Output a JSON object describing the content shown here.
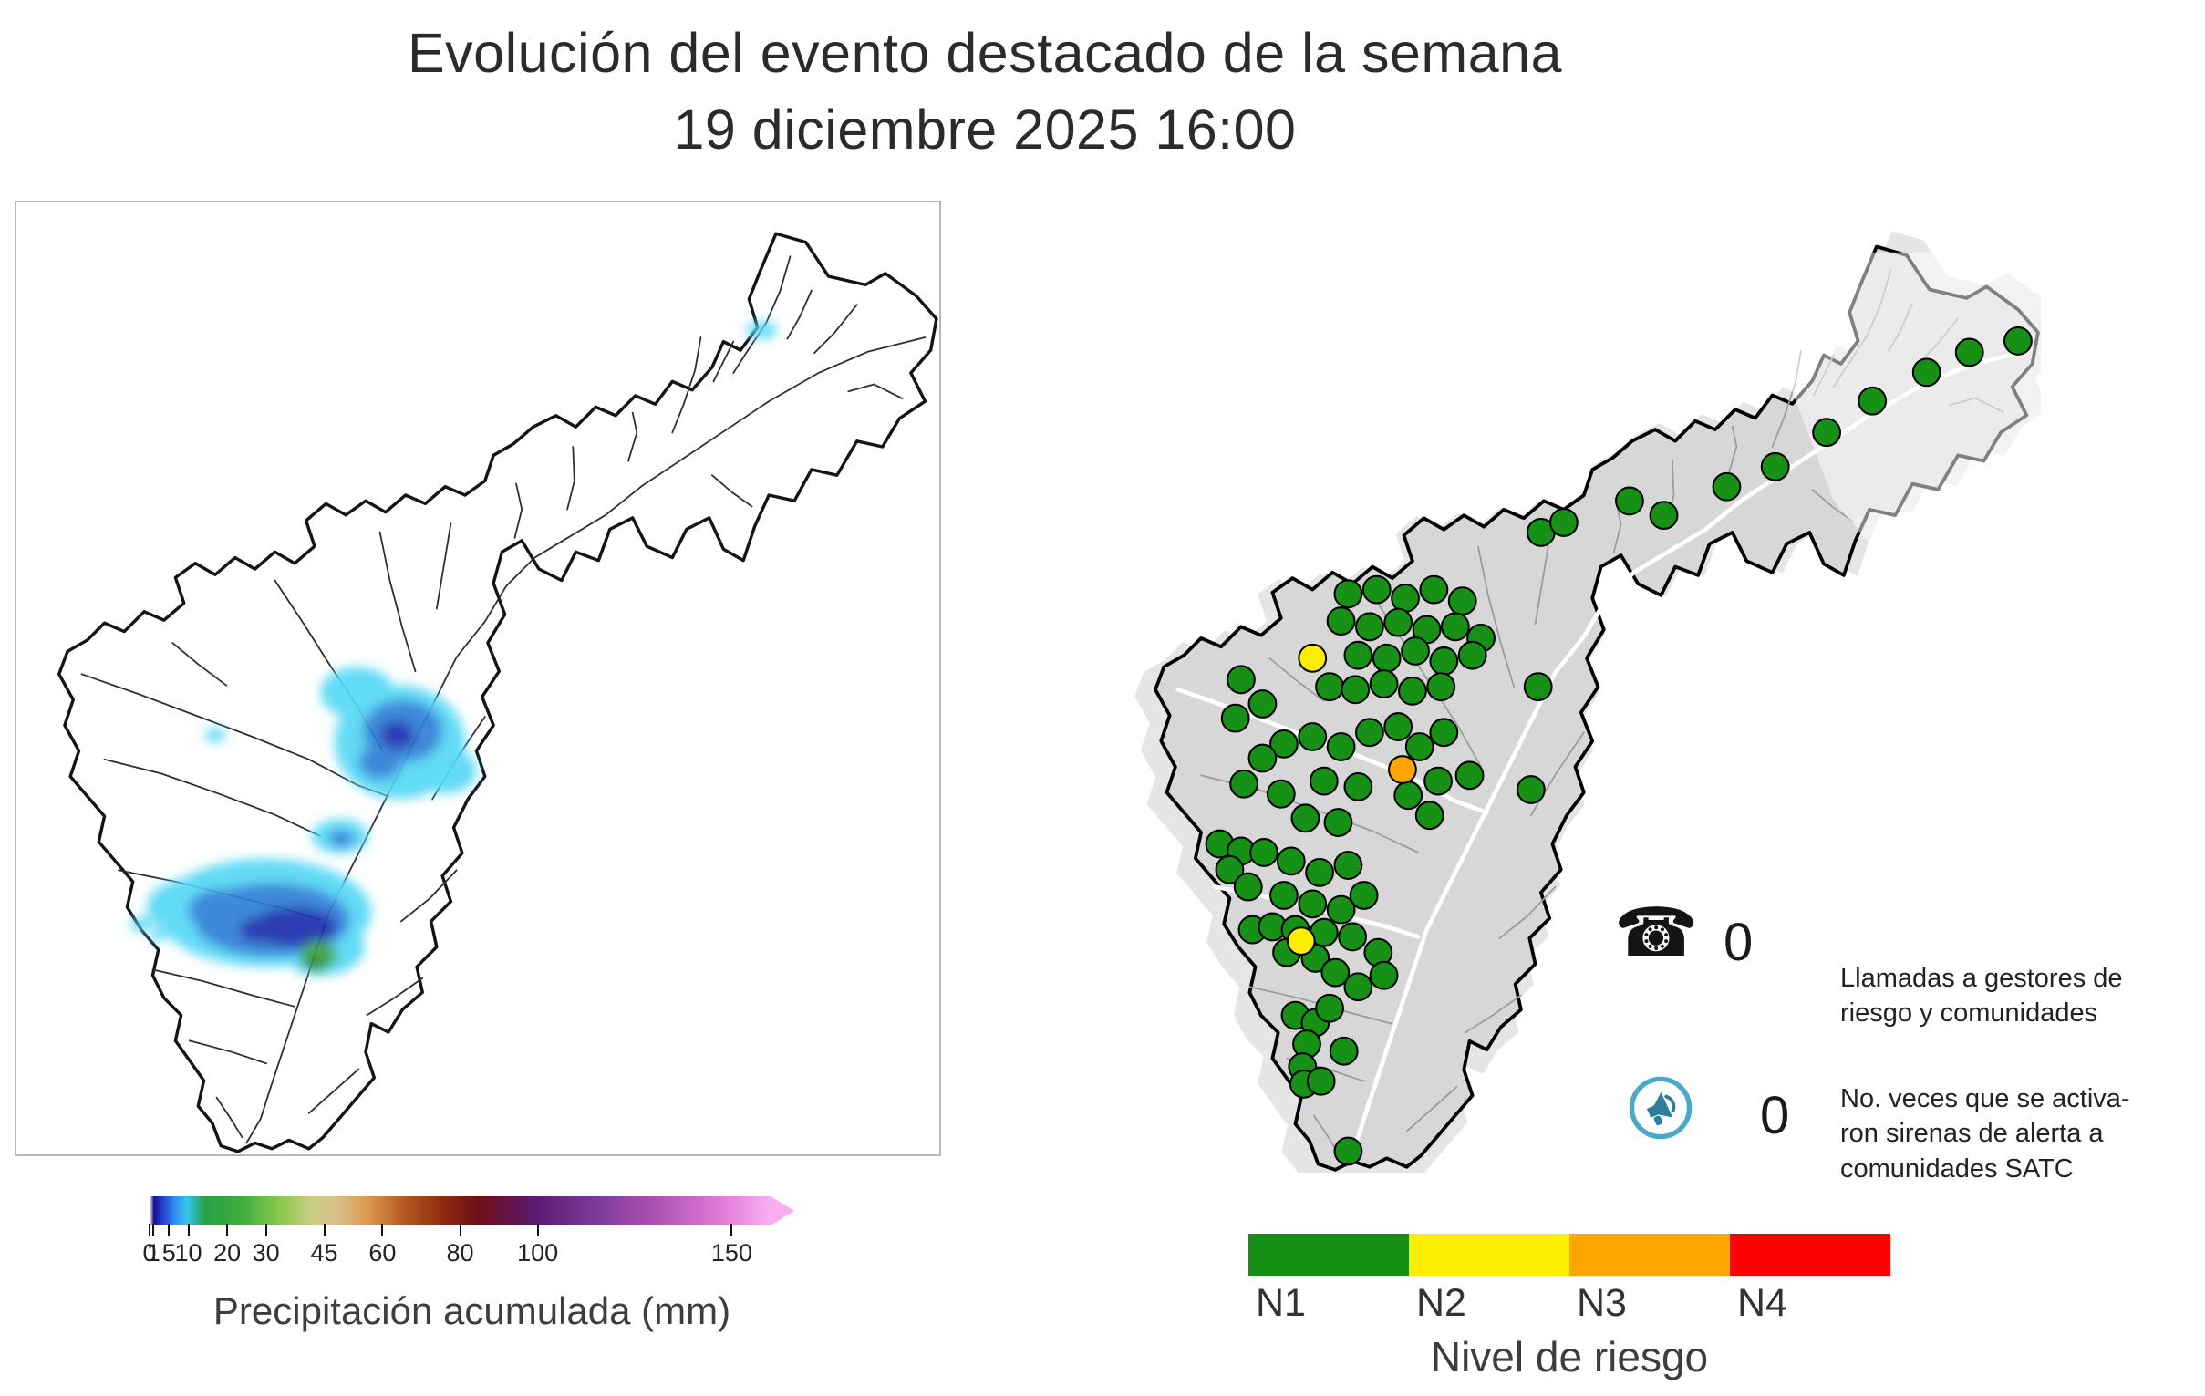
{
  "title": {
    "line1": "Evolución del evento destacado de la semana",
    "line2": "19 diciembre 2025 16:00"
  },
  "precip_legend": {
    "label": "Precipitación acumulada (mm)",
    "ticks": [
      0,
      1,
      5,
      10,
      20,
      30,
      45,
      60,
      80,
      100,
      150
    ],
    "max": 160,
    "gradient": [
      [
        0,
        "#ffffff"
      ],
      [
        0.7,
        "#141489"
      ],
      [
        2.2,
        "#2a3fd4"
      ],
      [
        4,
        "#2f8df0"
      ],
      [
        6,
        "#36c3ea"
      ],
      [
        9,
        "#27a244"
      ],
      [
        15,
        "#3fae3c"
      ],
      [
        21,
        "#8cc84e"
      ],
      [
        26,
        "#c9cd82"
      ],
      [
        30,
        "#d9c08a"
      ],
      [
        35,
        "#dc9b52"
      ],
      [
        41,
        "#b55a20"
      ],
      [
        47,
        "#902c12"
      ],
      [
        53,
        "#6d1016"
      ],
      [
        62,
        "#5b1a70"
      ],
      [
        72,
        "#7e3a9c"
      ],
      [
        82,
        "#b054b4"
      ],
      [
        92,
        "#e07ad8"
      ],
      [
        100,
        "#f9aef2"
      ]
    ]
  },
  "risk_legend": {
    "label": "Nivel de riesgo",
    "levels": [
      {
        "name": "N1",
        "color": "#169116"
      },
      {
        "name": "N2",
        "color": "#fdee00"
      },
      {
        "name": "N3",
        "color": "#ffa500"
      },
      {
        "name": "N4",
        "color": "#fe0000"
      }
    ]
  },
  "stats": [
    {
      "icon": "phone-icon",
      "value": "0",
      "label": "Llamadas a gestores de\nriesgo y comunidades"
    },
    {
      "icon": "siren-icon",
      "value": "0",
      "label": "No. veces que se activa-\nron sirenas de alerta a\ncomunidades SATC"
    }
  ],
  "risk_points": {
    "N1": [
      [
        300,
        222
      ],
      [
        316,
        215
      ],
      [
        362,
        200
      ],
      [
        386,
        210
      ],
      [
        430,
        190
      ],
      [
        464,
        176
      ],
      [
        500,
        152
      ],
      [
        532,
        130
      ],
      [
        570,
        110
      ],
      [
        600,
        96
      ],
      [
        634,
        88
      ],
      [
        165,
        265
      ],
      [
        185,
        262
      ],
      [
        205,
        268
      ],
      [
        225,
        262
      ],
      [
        245,
        270
      ],
      [
        160,
        284
      ],
      [
        180,
        288
      ],
      [
        200,
        285
      ],
      [
        220,
        290
      ],
      [
        240,
        288
      ],
      [
        258,
        296
      ],
      [
        172,
        308
      ],
      [
        192,
        310
      ],
      [
        212,
        305
      ],
      [
        232,
        312
      ],
      [
        252,
        308
      ],
      [
        152,
        330
      ],
      [
        170,
        332
      ],
      [
        190,
        328
      ],
      [
        210,
        333
      ],
      [
        230,
        330
      ],
      [
        298,
        330
      ],
      [
        90,
        325
      ],
      [
        105,
        342
      ],
      [
        86,
        352
      ],
      [
        120,
        370
      ],
      [
        140,
        365
      ],
      [
        160,
        372
      ],
      [
        180,
        362
      ],
      [
        200,
        358
      ],
      [
        215,
        372
      ],
      [
        232,
        362
      ],
      [
        105,
        380
      ],
      [
        92,
        398
      ],
      [
        118,
        405
      ],
      [
        148,
        396
      ],
      [
        172,
        400
      ],
      [
        207,
        406
      ],
      [
        228,
        396
      ],
      [
        250,
        392
      ],
      [
        135,
        422
      ],
      [
        158,
        425
      ],
      [
        293,
        402
      ],
      [
        222,
        420
      ],
      [
        75,
        440
      ],
      [
        90,
        445
      ],
      [
        82,
        458
      ],
      [
        95,
        470
      ],
      [
        106,
        446
      ],
      [
        125,
        452
      ],
      [
        145,
        460
      ],
      [
        165,
        455
      ],
      [
        120,
        476
      ],
      [
        140,
        482
      ],
      [
        160,
        486
      ],
      [
        176,
        476
      ],
      [
        98,
        500
      ],
      [
        112,
        498
      ],
      [
        128,
        500
      ],
      [
        148,
        502
      ],
      [
        168,
        505
      ],
      [
        122,
        516
      ],
      [
        142,
        520
      ],
      [
        156,
        530
      ],
      [
        172,
        540
      ],
      [
        186,
        516
      ],
      [
        190,
        532
      ],
      [
        128,
        560
      ],
      [
        142,
        565
      ],
      [
        152,
        555
      ],
      [
        162,
        585
      ],
      [
        136,
        580
      ],
      [
        133,
        596
      ],
      [
        134,
        608
      ],
      [
        146,
        606
      ],
      [
        165,
        655
      ]
    ],
    "N2": [
      [
        140,
        310
      ],
      [
        132,
        508
      ]
    ],
    "N3": [
      [
        203,
        388
      ]
    ],
    "N4": []
  }
}
